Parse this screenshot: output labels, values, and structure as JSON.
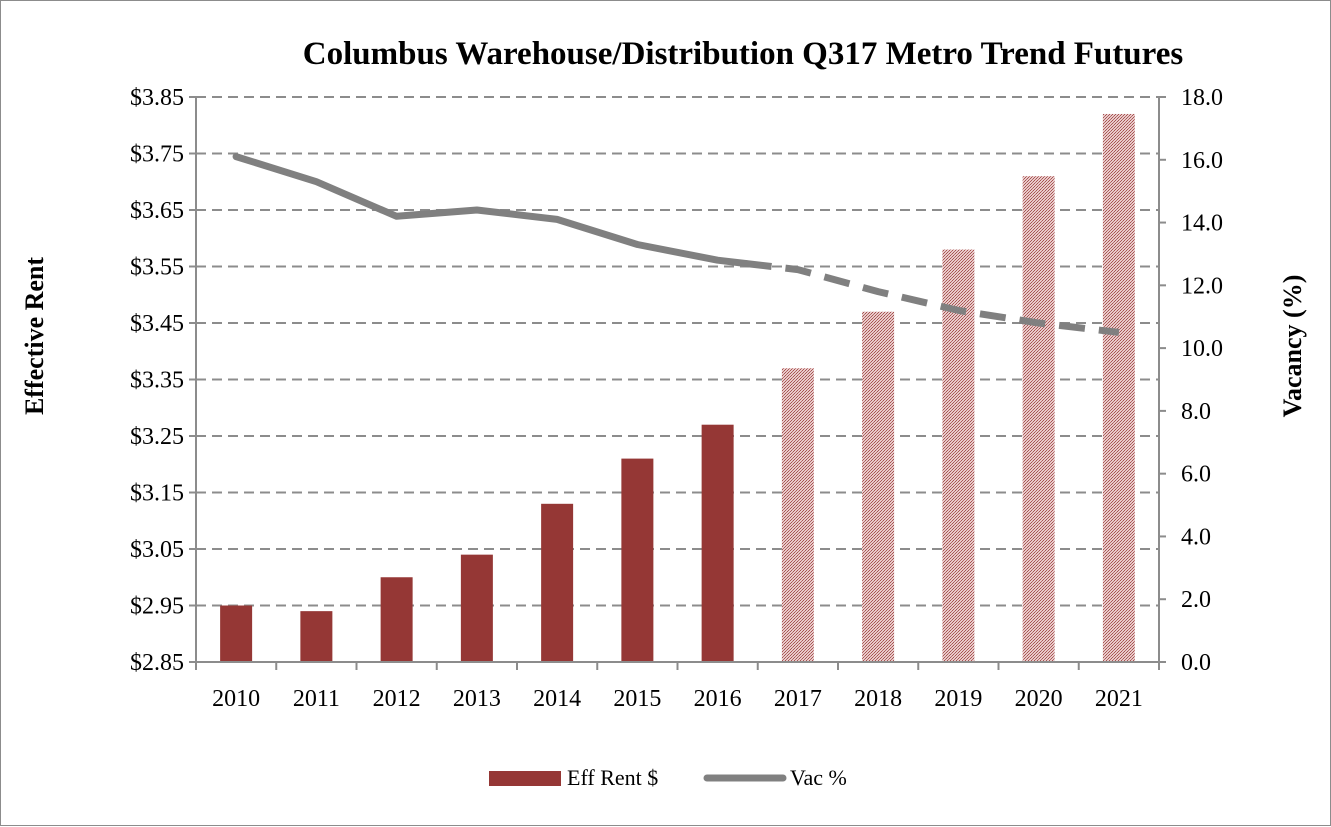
{
  "chart_data": {
    "type": "bar",
    "title": "Columbus Warehouse/Distribution Q317 Metro Trend Futures",
    "ylabel": "Effective Rent",
    "y2label": "Vacancy (%)",
    "categories": [
      "2010",
      "2011",
      "2012",
      "2013",
      "2014",
      "2015",
      "2016",
      "2017",
      "2018",
      "2019",
      "2020",
      "2021"
    ],
    "forecast_start_index": 7,
    "ylim": [
      2.85,
      3.85
    ],
    "y_ticks": [
      2.85,
      2.95,
      3.05,
      3.15,
      3.25,
      3.35,
      3.45,
      3.55,
      3.65,
      3.75,
      3.85
    ],
    "y_tick_labels": [
      "$2.85",
      "$2.95",
      "$3.05",
      "$3.15",
      "$3.25",
      "$3.35",
      "$3.45",
      "$3.55",
      "$3.65",
      "$3.75",
      "$3.85"
    ],
    "y2lim": [
      0,
      18
    ],
    "y2_ticks": [
      0,
      2,
      4,
      6,
      8,
      10,
      12,
      14,
      16,
      18
    ],
    "y2_tick_labels": [
      "0.0",
      "2.0",
      "4.0",
      "6.0",
      "8.0",
      "10.0",
      "12.0",
      "14.0",
      "16.0",
      "18.0"
    ],
    "grid": true,
    "legend_position": "bottom",
    "series": [
      {
        "name": "Eff Rent $",
        "type": "bar",
        "axis": "left",
        "color": "#953735",
        "values": [
          2.95,
          2.94,
          3.0,
          3.04,
          3.13,
          3.21,
          3.27,
          3.37,
          3.47,
          3.58,
          3.71,
          3.82
        ]
      },
      {
        "name": "Vac %",
        "type": "line",
        "axis": "right",
        "color": "#808080",
        "values": [
          16.1,
          15.3,
          14.2,
          14.4,
          14.1,
          13.3,
          12.8,
          12.5,
          11.8,
          11.2,
          10.8,
          10.5
        ]
      }
    ]
  }
}
